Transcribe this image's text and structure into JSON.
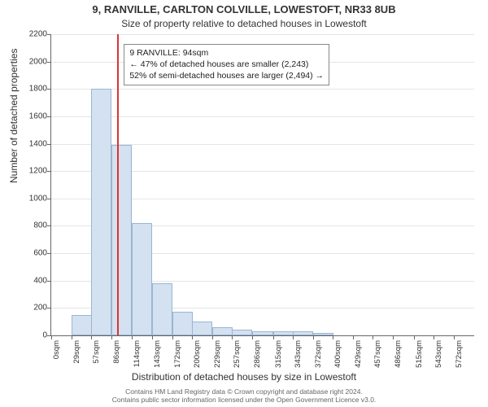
{
  "title_main": "9, RANVILLE, CARLTON COLVILLE, LOWESTOFT, NR33 8UB",
  "title_sub": "Size of property relative to detached houses in Lowestoft",
  "y_label": "Number of detached properties",
  "x_label": "Distribution of detached houses by size in Lowestoft",
  "footer_line1": "Contains HM Land Registry data © Crown copyright and database right 2024.",
  "footer_line2": "Contains public sector information licensed under the Open Government Licence v3.0.",
  "chart": {
    "type": "histogram",
    "background_color": "#ffffff",
    "grid_color": "#e5e5e5",
    "axis_color": "#666666",
    "bar_fill": "#d3e1f0",
    "bar_border": "#9ab5d3",
    "ref_line_color": "#dd3333",
    "ref_line_x": 94,
    "ylim": [
      0,
      2200
    ],
    "ytick_step": 200,
    "yticks": [
      0,
      200,
      400,
      600,
      800,
      1000,
      1200,
      1400,
      1600,
      1800,
      2000,
      2200
    ],
    "x_categories": [
      "0sqm",
      "29sqm",
      "57sqm",
      "86sqm",
      "114sqm",
      "143sqm",
      "172sqm",
      "200sqm",
      "229sqm",
      "257sqm",
      "286sqm",
      "315sqm",
      "343sqm",
      "372sqm",
      "400sqm",
      "429sqm",
      "457sqm",
      "486sqm",
      "515sqm",
      "543sqm",
      "572sqm"
    ],
    "x_values": [
      0,
      29,
      57,
      86,
      114,
      143,
      172,
      200,
      229,
      257,
      286,
      315,
      343,
      372,
      400,
      429,
      457,
      486,
      515,
      543,
      572
    ],
    "bin_width": 29,
    "values": [
      0,
      150,
      1800,
      1390,
      820,
      380,
      170,
      100,
      60,
      40,
      30,
      30,
      30,
      20,
      0,
      0,
      0,
      0,
      0,
      0,
      0
    ],
    "xlim": [
      0,
      601
    ],
    "title_fontsize": 13,
    "subtitle_fontsize": 12,
    "label_fontsize": 12,
    "tick_fontsize": 10
  },
  "annotation": {
    "line1": "9 RANVILLE: 94sqm",
    "line2": "← 47% of detached houses are smaller (2,243)",
    "line3": "52% of semi-detached houses are larger (2,494) →",
    "border_color": "#888888",
    "bg_color": "#ffffff",
    "fontsize": 10.5
  }
}
